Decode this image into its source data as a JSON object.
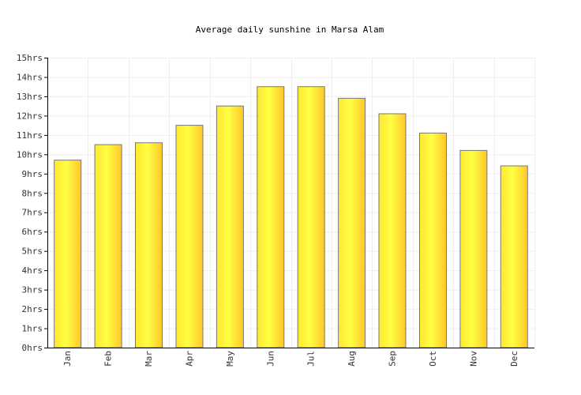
{
  "chart_data": {
    "type": "bar",
    "title": "Average daily sunshine in Marsa Alam",
    "xlabel": "",
    "ylabel": "",
    "categories": [
      "Jan",
      "Feb",
      "Mar",
      "Apr",
      "May",
      "Jun",
      "Jul",
      "Aug",
      "Sep",
      "Oct",
      "Nov",
      "Dec"
    ],
    "values": [
      9.7,
      10.5,
      10.6,
      11.5,
      12.5,
      13.5,
      13.5,
      12.9,
      12.1,
      11.1,
      10.2,
      9.4
    ],
    "ylim": [
      0,
      15
    ],
    "yticks": [
      "0hrs",
      "1hrs",
      "2hrs",
      "3hrs",
      "4hrs",
      "5hrs",
      "6hrs",
      "7hrs",
      "8hrs",
      "9hrs",
      "10hrs",
      "11hrs",
      "12hrs",
      "13hrs",
      "14hrs",
      "15hrs"
    ],
    "grid": true,
    "legend": "none",
    "colors": {
      "bar_start": "#ffe830",
      "bar_mid": "#ffff44",
      "bar_end": "#ffc62a",
      "bar_stroke": "#777777",
      "axis": "#000000",
      "grid": "#eeeeee"
    }
  }
}
